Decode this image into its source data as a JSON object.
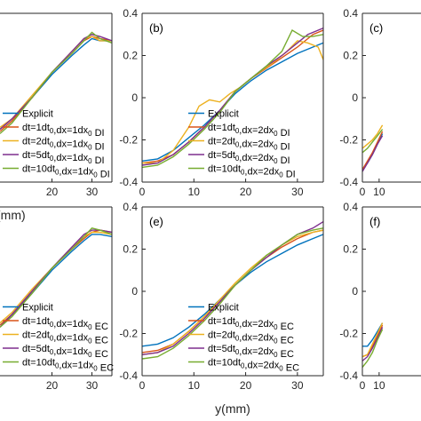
{
  "colors": {
    "explicit": "#0072BD",
    "s1": "#D95319",
    "s2": "#EDB120",
    "s3": "#7E2F8E",
    "s4": "#77AC30",
    "axis": "#262626"
  },
  "chart_data": [
    {
      "type": "line",
      "panel_label": "",
      "xlabel": "r(mm)",
      "ylabel": "",
      "xlim": [
        7,
        35
      ],
      "ylim": [
        -0.4,
        0.4
      ],
      "xticks": [
        "20",
        "30"
      ],
      "yticks": [],
      "legend_placement": "bottom-left",
      "series": [
        {
          "name": "Explicit",
          "color_key": "explicit",
          "x": [
            7,
            10,
            15,
            20,
            25,
            28,
            30,
            32,
            35
          ],
          "y": [
            -0.15,
            -0.1,
            0.0,
            0.11,
            0.2,
            0.25,
            0.28,
            0.27,
            0.27
          ]
        },
        {
          "name": "dt=1dt0,dx=1dx0 DI",
          "color_key": "s1",
          "x": [
            7,
            10,
            15,
            20,
            25,
            28,
            30,
            32,
            35
          ],
          "y": [
            -0.16,
            -0.11,
            0.0,
            0.12,
            0.21,
            0.27,
            0.29,
            0.28,
            0.27
          ]
        },
        {
          "name": "dt=2dt0,dx=1dx0 DI",
          "color_key": "s2",
          "x": [
            7,
            10,
            15,
            20,
            25,
            28,
            30,
            32,
            35
          ],
          "y": [
            -0.14,
            -0.1,
            0.01,
            0.12,
            0.22,
            0.28,
            0.29,
            0.27,
            0.27
          ]
        },
        {
          "name": "dt=5dt0,dx=1dx0 DI",
          "color_key": "s3",
          "x": [
            7,
            10,
            15,
            20,
            25,
            28,
            30,
            32,
            35
          ],
          "y": [
            -0.15,
            -0.1,
            0.0,
            0.12,
            0.22,
            0.28,
            0.3,
            0.29,
            0.27
          ]
        },
        {
          "name": "dt=10dt0,dx=1dx0 DI",
          "color_key": "s4",
          "x": [
            7,
            10,
            15,
            20,
            25,
            28,
            30,
            32,
            35
          ],
          "y": [
            -0.17,
            -0.12,
            0.0,
            0.12,
            0.21,
            0.27,
            0.31,
            0.28,
            0.26
          ]
        }
      ]
    },
    {
      "type": "line",
      "panel_label": "(b)",
      "xlabel": "",
      "ylabel": "",
      "xlim": [
        0,
        35
      ],
      "ylim": [
        -0.4,
        0.4
      ],
      "xticks": [
        "0",
        "10",
        "20",
        "30"
      ],
      "yticks": [
        "-0.4",
        "-0.2",
        "0",
        "0.2",
        "0.4"
      ],
      "legend_placement": "bottom-right",
      "series": [
        {
          "name": "Explicit",
          "color_key": "explicit",
          "x": [
            0,
            3,
            6,
            9,
            12,
            15,
            18,
            21,
            24,
            27,
            30,
            33,
            35
          ],
          "y": [
            -0.3,
            -0.29,
            -0.25,
            -0.19,
            -0.13,
            -0.06,
            0.02,
            0.08,
            0.13,
            0.17,
            0.21,
            0.24,
            0.26
          ]
        },
        {
          "name": "dt=1dt0,dx=2dx0 DI",
          "color_key": "s1",
          "x": [
            0,
            3,
            6,
            9,
            12,
            15,
            18,
            21,
            24,
            27,
            30,
            33,
            35
          ],
          "y": [
            -0.31,
            -0.3,
            -0.27,
            -0.21,
            -0.14,
            -0.06,
            0.03,
            0.09,
            0.14,
            0.19,
            0.24,
            0.3,
            0.32
          ]
        },
        {
          "name": "dt=2dt0,dx=2dx0 DI",
          "color_key": "s2",
          "x": [
            0,
            3,
            6,
            9,
            11,
            13,
            15,
            17,
            19,
            22,
            25,
            28,
            30,
            32,
            34,
            35
          ],
          "y": [
            -0.31,
            -0.31,
            -0.25,
            -0.14,
            -0.04,
            -0.01,
            -0.02,
            0.02,
            0.05,
            0.11,
            0.16,
            0.22,
            0.27,
            0.26,
            0.24,
            0.18
          ]
        },
        {
          "name": "dt=5dt0,dx=2dx0 DI",
          "color_key": "s3",
          "x": [
            0,
            3,
            6,
            9,
            12,
            15,
            18,
            21,
            24,
            27,
            30,
            32,
            35
          ],
          "y": [
            -0.32,
            -0.31,
            -0.27,
            -0.21,
            -0.14,
            -0.06,
            0.03,
            0.09,
            0.15,
            0.2,
            0.26,
            0.3,
            0.33
          ]
        },
        {
          "name": "dt=10dt0,dx=2dx0 DI",
          "color_key": "s4",
          "x": [
            0,
            3,
            6,
            9,
            12,
            15,
            18,
            21,
            24,
            27,
            29,
            31,
            33,
            35
          ],
          "y": [
            -0.33,
            -0.32,
            -0.28,
            -0.22,
            -0.15,
            -0.07,
            0.03,
            0.09,
            0.15,
            0.22,
            0.32,
            0.29,
            0.29,
            0.3
          ]
        }
      ]
    },
    {
      "type": "line",
      "panel_label": "(c)",
      "xlabel": "",
      "ylabel": "",
      "xlim": [
        0,
        35
      ],
      "ylim": [
        -0.4,
        0.4
      ],
      "xticks": [
        "0",
        "10"
      ],
      "yticks": [
        "-0.4",
        "-0.2",
        "0",
        "0.2",
        "0.4"
      ],
      "legend_placement": "",
      "series": [
        {
          "name": "",
          "color_key": "explicit",
          "x": [
            0,
            3,
            6,
            9,
            12
          ],
          "y": [
            -0.34,
            -0.31,
            -0.27,
            -0.22,
            -0.17
          ]
        },
        {
          "name": "",
          "color_key": "s1",
          "x": [
            0,
            3,
            6,
            9,
            12
          ],
          "y": [
            -0.34,
            -0.3,
            -0.26,
            -0.21,
            -0.16
          ]
        },
        {
          "name": "",
          "color_key": "s2",
          "x": [
            0,
            3,
            6,
            9,
            12
          ],
          "y": [
            -0.24,
            -0.22,
            -0.2,
            -0.17,
            -0.13
          ]
        },
        {
          "name": "",
          "color_key": "s3",
          "x": [
            0,
            3,
            6,
            9,
            12
          ],
          "y": [
            -0.35,
            -0.31,
            -0.27,
            -0.22,
            -0.18
          ]
        },
        {
          "name": "",
          "color_key": "s4",
          "x": [
            0,
            3,
            6,
            9,
            12
          ],
          "y": [
            -0.26,
            -0.24,
            -0.21,
            -0.18,
            -0.15
          ]
        }
      ]
    },
    {
      "type": "line",
      "panel_label": "",
      "xlabel": "",
      "ylabel": "",
      "xlim": [
        7,
        35
      ],
      "ylim": [
        -0.4,
        0.4
      ],
      "xticks": [
        "20",
        "30"
      ],
      "yticks": [],
      "legend_placement": "bottom-left",
      "series": [
        {
          "name": "Explicit",
          "color_key": "explicit",
          "x": [
            7,
            10,
            15,
            20,
            25,
            28,
            30,
            32,
            35
          ],
          "y": [
            -0.16,
            -0.11,
            -0.01,
            0.1,
            0.19,
            0.24,
            0.27,
            0.27,
            0.26
          ]
        },
        {
          "name": "dt=1dt0,dx=1dx0 EC",
          "color_key": "s1",
          "x": [
            7,
            10,
            15,
            20,
            25,
            28,
            30,
            32,
            35
          ],
          "y": [
            -0.16,
            -0.11,
            0.0,
            0.11,
            0.2,
            0.25,
            0.28,
            0.29,
            0.28
          ]
        },
        {
          "name": "dt=2dt0,dx=1dx0 EC",
          "color_key": "s2",
          "x": [
            7,
            10,
            15,
            20,
            25,
            28,
            30,
            32,
            35
          ],
          "y": [
            -0.15,
            -0.1,
            0.01,
            0.11,
            0.21,
            0.26,
            0.28,
            0.28,
            0.27
          ]
        },
        {
          "name": "dt=5dt0,dx=1dx0 EC",
          "color_key": "s3",
          "x": [
            7,
            10,
            15,
            20,
            25,
            28,
            30,
            32,
            35
          ],
          "y": [
            -0.17,
            -0.11,
            0.0,
            0.11,
            0.21,
            0.27,
            0.29,
            0.29,
            0.28
          ]
        },
        {
          "name": "dt=10dt0,dx=1dx0 EC",
          "color_key": "s4",
          "x": [
            7,
            10,
            15,
            20,
            25,
            28,
            30,
            32,
            35
          ],
          "y": [
            -0.17,
            -0.12,
            -0.01,
            0.11,
            0.2,
            0.26,
            0.3,
            0.29,
            0.27
          ]
        }
      ]
    },
    {
      "type": "line",
      "panel_label": "(e)",
      "xlabel": "y(mm)",
      "ylabel": "",
      "xlim": [
        0,
        35
      ],
      "ylim": [
        -0.4,
        0.4
      ],
      "xticks": [
        "0",
        "10",
        "20",
        "30"
      ],
      "yticks": [
        "-0.4",
        "-0.2",
        "0",
        "0.2",
        "0.4"
      ],
      "legend_placement": "bottom-right",
      "series": [
        {
          "name": "Explicit",
          "color_key": "explicit",
          "x": [
            0,
            3,
            6,
            9,
            12,
            15,
            18,
            21,
            24,
            27,
            30,
            33,
            35
          ],
          "y": [
            -0.26,
            -0.25,
            -0.22,
            -0.17,
            -0.11,
            -0.04,
            0.03,
            0.09,
            0.14,
            0.18,
            0.22,
            0.25,
            0.27
          ]
        },
        {
          "name": "dt=1dt0,dx=2dx0 EC",
          "color_key": "s1",
          "x": [
            0,
            3,
            6,
            9,
            12,
            15,
            18,
            21,
            24,
            27,
            30,
            33,
            35
          ],
          "y": [
            -0.29,
            -0.28,
            -0.25,
            -0.19,
            -0.12,
            -0.05,
            0.03,
            0.1,
            0.16,
            0.21,
            0.25,
            0.28,
            0.29
          ]
        },
        {
          "name": "dt=2dt0,dx=2dx0 EC",
          "color_key": "s2",
          "x": [
            0,
            3,
            6,
            9,
            12,
            15,
            18,
            21,
            24,
            27,
            30,
            33,
            35
          ],
          "y": [
            -0.3,
            -0.29,
            -0.25,
            -0.19,
            -0.12,
            -0.04,
            0.04,
            0.11,
            0.17,
            0.22,
            0.26,
            0.28,
            0.29
          ]
        },
        {
          "name": "dt=5dt0,dx=2dx0 EC",
          "color_key": "s3",
          "x": [
            0,
            3,
            6,
            9,
            12,
            15,
            18,
            21,
            24,
            27,
            30,
            33,
            35
          ],
          "y": [
            -0.3,
            -0.29,
            -0.26,
            -0.2,
            -0.13,
            -0.05,
            0.03,
            0.1,
            0.16,
            0.22,
            0.27,
            0.3,
            0.33
          ]
        },
        {
          "name": "dt=10dt0,dx=2dx0 EC",
          "color_key": "s4",
          "x": [
            0,
            3,
            6,
            9,
            12,
            15,
            18,
            21,
            24,
            27,
            30,
            33,
            35
          ],
          "y": [
            -0.32,
            -0.31,
            -0.27,
            -0.21,
            -0.14,
            -0.06,
            0.03,
            0.1,
            0.17,
            0.22,
            0.27,
            0.29,
            0.3
          ]
        }
      ]
    },
    {
      "type": "line",
      "panel_label": "(f)",
      "xlabel": "",
      "ylabel": "",
      "xlim": [
        0,
        35
      ],
      "ylim": [
        -0.4,
        0.4
      ],
      "xticks": [
        "0",
        "10"
      ],
      "yticks": [
        "-0.4",
        "-0.2",
        "0",
        "0.2",
        "0.4"
      ],
      "legend_placement": "",
      "series": [
        {
          "name": "",
          "color_key": "explicit",
          "x": [
            0,
            3,
            6,
            9,
            12
          ],
          "y": [
            -0.26,
            -0.26,
            -0.23,
            -0.19,
            -0.15
          ]
        },
        {
          "name": "",
          "color_key": "s1",
          "x": [
            0,
            3,
            6,
            9,
            12
          ],
          "y": [
            -0.31,
            -0.3,
            -0.26,
            -0.21,
            -0.16
          ]
        },
        {
          "name": "",
          "color_key": "s2",
          "x": [
            0,
            3,
            6,
            9,
            12
          ],
          "y": [
            -0.31,
            -0.3,
            -0.25,
            -0.2,
            -0.15
          ]
        },
        {
          "name": "",
          "color_key": "s3",
          "x": [
            0,
            3,
            6,
            9,
            12
          ],
          "y": [
            -0.33,
            -0.31,
            -0.27,
            -0.22,
            -0.17
          ]
        },
        {
          "name": "",
          "color_key": "s4",
          "x": [
            0,
            3,
            6,
            9,
            12
          ],
          "y": [
            -0.36,
            -0.33,
            -0.29,
            -0.23,
            -0.18
          ]
        }
      ]
    }
  ]
}
